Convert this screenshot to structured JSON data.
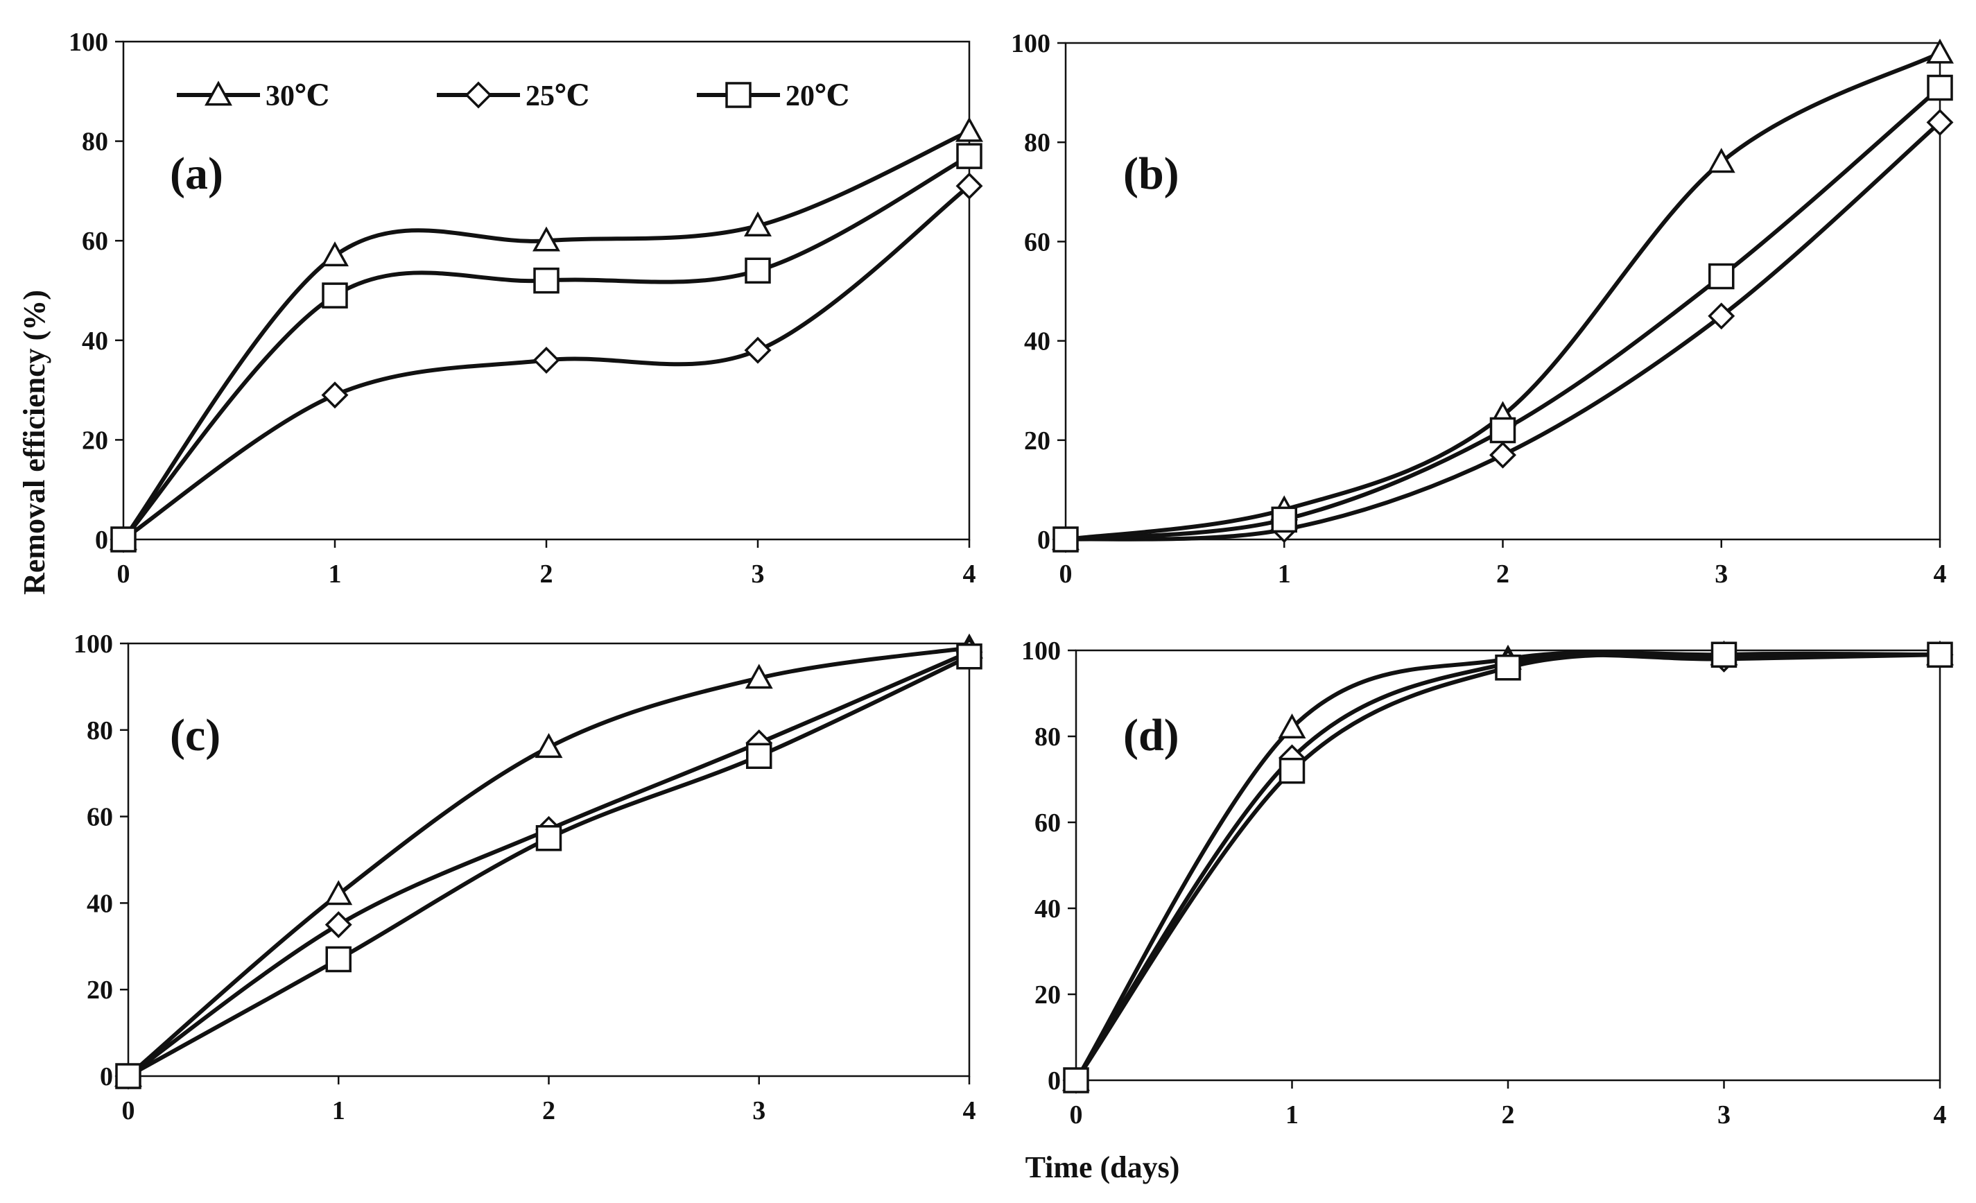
{
  "figure": {
    "xlabel": "Time (days)",
    "ylabel": "Removal efficiency  (%)"
  },
  "legend": [
    {
      "label": "30℃",
      "marker": "triangle"
    },
    {
      "label": "25℃",
      "marker": "diamond"
    },
    {
      "label": "20℃",
      "marker": "square"
    }
  ],
  "colors": {
    "line": "#111111",
    "background": "#ffffff"
  },
  "chart_data": [
    {
      "type": "line",
      "panel": "(a)",
      "x": [
        0,
        1,
        2,
        3,
        4
      ],
      "xlim": [
        0,
        4
      ],
      "ylim": [
        0,
        100
      ],
      "yticks": [
        0,
        20,
        40,
        60,
        80,
        100
      ],
      "series": [
        {
          "name": "30℃",
          "marker": "triangle",
          "values": [
            0,
            57,
            60,
            63,
            82
          ]
        },
        {
          "name": "25℃",
          "marker": "diamond",
          "values": [
            0,
            29,
            36,
            38,
            71
          ]
        },
        {
          "name": "20℃",
          "marker": "square",
          "values": [
            0,
            49,
            52,
            54,
            77
          ]
        }
      ]
    },
    {
      "type": "line",
      "panel": "(b)",
      "x": [
        0,
        1,
        2,
        3,
        4
      ],
      "xlim": [
        0,
        4
      ],
      "ylim": [
        0,
        100
      ],
      "yticks": [
        0,
        20,
        40,
        60,
        80,
        100
      ],
      "series": [
        {
          "name": "30℃",
          "marker": "triangle",
          "values": [
            0,
            6,
            25,
            76,
            98
          ]
        },
        {
          "name": "25℃",
          "marker": "diamond",
          "values": [
            0,
            2,
            17,
            45,
            84
          ]
        },
        {
          "name": "20℃",
          "marker": "square",
          "values": [
            0,
            4,
            22,
            53,
            91
          ]
        }
      ]
    },
    {
      "type": "line",
      "panel": "(c)",
      "x": [
        0,
        1,
        2,
        3,
        4
      ],
      "xlim": [
        0,
        4
      ],
      "ylim": [
        0,
        100
      ],
      "yticks": [
        0,
        20,
        40,
        60,
        80,
        100
      ],
      "series": [
        {
          "name": "30℃",
          "marker": "triangle",
          "values": [
            0,
            42,
            76,
            92,
            99
          ]
        },
        {
          "name": "25℃",
          "marker": "diamond",
          "values": [
            0,
            35,
            57,
            77,
            98
          ]
        },
        {
          "name": "20℃",
          "marker": "square",
          "values": [
            0,
            27,
            55,
            74,
            97
          ]
        }
      ]
    },
    {
      "type": "line",
      "panel": "(d)",
      "x": [
        0,
        1,
        2,
        3,
        4
      ],
      "xlim": [
        0,
        4
      ],
      "ylim": [
        0,
        100
      ],
      "yticks": [
        0,
        20,
        40,
        60,
        80,
        100
      ],
      "series": [
        {
          "name": "30℃",
          "marker": "triangle",
          "values": [
            0,
            82,
            98,
            99,
            99
          ]
        },
        {
          "name": "25℃",
          "marker": "diamond",
          "values": [
            0,
            75,
            97,
            98,
            99
          ]
        },
        {
          "name": "20℃",
          "marker": "square",
          "values": [
            0,
            72,
            96,
            99,
            99
          ]
        }
      ]
    }
  ]
}
